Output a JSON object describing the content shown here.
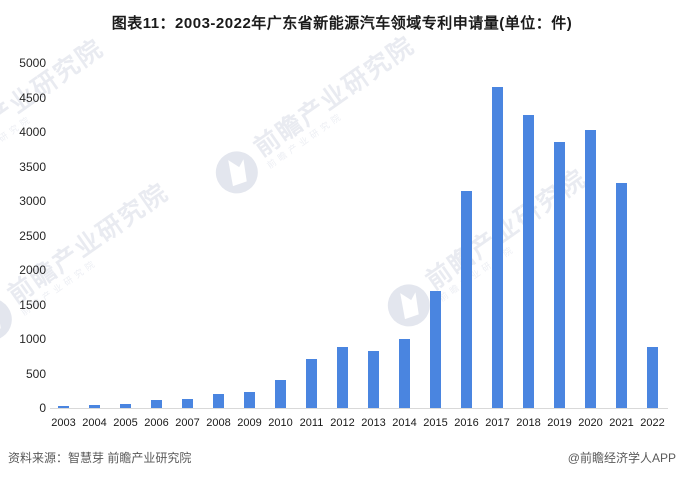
{
  "chart_data": {
    "type": "bar",
    "title": "图表11：2003-2022年广东省新能源汽车领域专利申请量(单位：件)",
    "categories": [
      "2003",
      "2004",
      "2005",
      "2006",
      "2007",
      "2008",
      "2009",
      "2010",
      "2011",
      "2012",
      "2013",
      "2014",
      "2015",
      "2016",
      "2017",
      "2018",
      "2019",
      "2020",
      "2021",
      "2022"
    ],
    "values": [
      35,
      40,
      60,
      120,
      135,
      200,
      230,
      400,
      715,
      890,
      830,
      1000,
      1695,
      3140,
      4650,
      4250,
      3860,
      4030,
      3260,
      885
    ],
    "xlabel": "",
    "ylabel": "",
    "ylim": [
      0,
      5000
    ],
    "ytick_step": 500,
    "yticks": [
      0,
      500,
      1000,
      1500,
      2000,
      2500,
      3000,
      3500,
      4000,
      4500,
      5000
    ],
    "grid": false,
    "legend_position": "none",
    "bar_color": "#4A85E0"
  },
  "footer": {
    "source": "资料来源：智慧芽 前瞻产业研究院",
    "credit": "@前瞻经济学人APP"
  },
  "watermark": {
    "text": "前瞻产业研究院",
    "subtext": "前瞻产业研究院",
    "color": "#e9ebf1",
    "logo_color": "#e3e6ee"
  },
  "colors": {
    "bar": "#4A85E0",
    "title_text": "#1a1a1a",
    "axis_text": "#262626",
    "footer_text": "#595959",
    "baseline": "#d9d9d9"
  }
}
